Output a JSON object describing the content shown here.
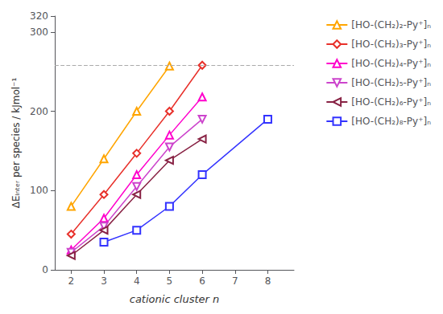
{
  "chart_data": {
    "type": "line",
    "xlabel": "cationic cluster n",
    "ylabel": "ΔEᵢₙₜₑᵣ per species / kJmol⁻¹",
    "series": [
      {
        "name": "[HO-(CH₂)₂-Py⁺]ₙ",
        "color": "#FFA500",
        "marker": "triangle-up",
        "x": [
          2,
          3,
          4,
          5
        ],
        "values": [
          80,
          140,
          200,
          257
        ]
      },
      {
        "name": "[HO-(CH₂)₃-Py⁺]ₙ",
        "color": "#E8302A",
        "marker": "diamond",
        "x": [
          2,
          3,
          4,
          5,
          6
        ],
        "values": [
          45,
          95,
          147,
          200,
          258
        ]
      },
      {
        "name": "[HO-(CH₂)₄-Py⁺]ₙ",
        "color": "#FF00CC",
        "marker": "triangle-up",
        "x": [
          2,
          3,
          4,
          5,
          6
        ],
        "values": [
          25,
          65,
          120,
          170,
          218
        ]
      },
      {
        "name": "[HO-(CH₂)₅-Py⁺]ₙ",
        "color": "#CC44CC",
        "marker": "triangle-down",
        "x": [
          2,
          3,
          4,
          5,
          6
        ],
        "values": [
          22,
          55,
          105,
          155,
          190
        ]
      },
      {
        "name": "[HO-(CH₂)₆-Py⁺]ₙ",
        "color": "#882244",
        "marker": "triangle-left",
        "x": [
          2,
          3,
          4,
          5,
          6
        ],
        "values": [
          18,
          50,
          95,
          138,
          165
        ]
      },
      {
        "name": "[HO-(CH₂)₈-Py⁺]ₙ",
        "color": "#3333FF",
        "marker": "square",
        "x": [
          3,
          4,
          5,
          6,
          8
        ],
        "values": [
          35,
          50,
          80,
          120,
          190
        ]
      }
    ],
    "reference_lines": [
      {
        "y": 258,
        "color": "#AAAAAA",
        "line_style": "dashed"
      }
    ],
    "xlim": [
      1.5,
      8.8
    ],
    "xticks": [
      2,
      3,
      4,
      5,
      6,
      7,
      8
    ],
    "ylim": [
      0,
      320
    ],
    "yticks": [
      0,
      100,
      200,
      300
    ],
    "grid": false,
    "legend": "right"
  }
}
